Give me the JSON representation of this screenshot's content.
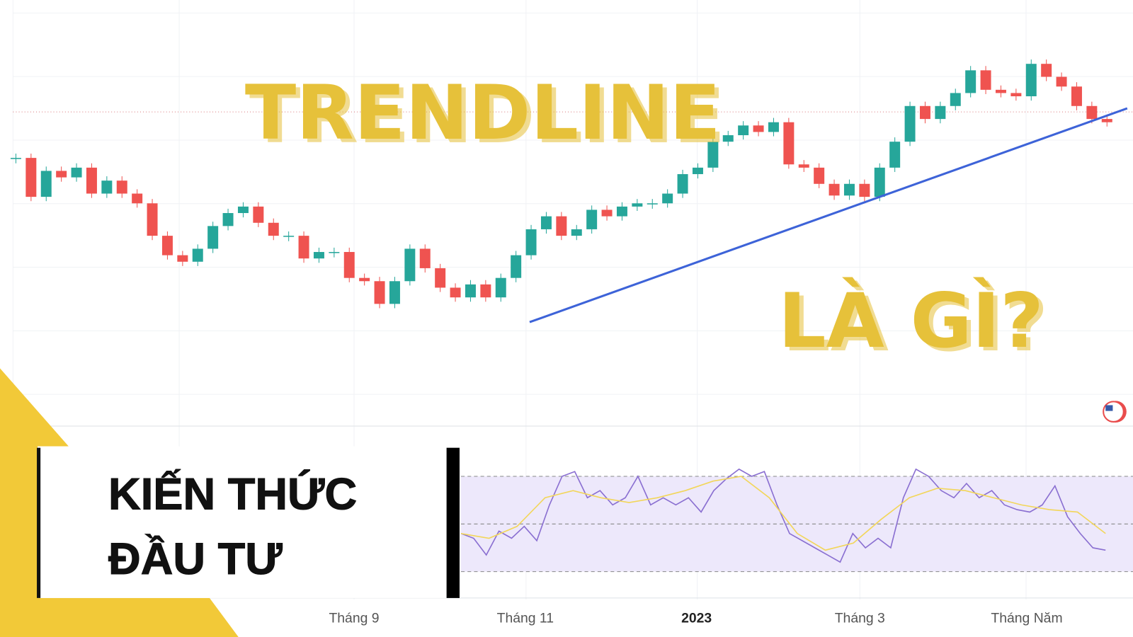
{
  "chart_data": [
    {
      "type": "candlestick",
      "up_color": "#26a69a",
      "down_color": "#ef5350",
      "ylim": [
        0,
        590
      ],
      "values": [
        380,
        320,
        360,
        350,
        365,
        325,
        345,
        325,
        310,
        260,
        230,
        220,
        240,
        275,
        295,
        305,
        280,
        260,
        260,
        225,
        235,
        235,
        195,
        190,
        155,
        190,
        240,
        210,
        180,
        165,
        185,
        165,
        195,
        230,
        270,
        290,
        260,
        270,
        300,
        290,
        305,
        310,
        310,
        325,
        355,
        365,
        405,
        415,
        430,
        420,
        435,
        370,
        365,
        340,
        322,
        340,
        320,
        365,
        405,
        460,
        440,
        460,
        480,
        515,
        485,
        480,
        475,
        525,
        505,
        490,
        460,
        440,
        435
      ],
      "x_labels": [
        "Tháng 9",
        "Tháng 11",
        "2023",
        "Tháng 3",
        "Tháng Năm"
      ]
    },
    {
      "type": "line",
      "ylim": [
        15,
        85
      ],
      "levels": [
        70,
        50,
        30
      ],
      "series": [
        {
          "color": "#8a6fd1",
          "values": [
            46,
            44,
            37,
            47,
            44,
            49,
            43,
            58,
            70,
            72,
            61,
            64,
            58,
            61,
            70,
            58,
            61,
            58,
            61,
            55,
            64,
            69,
            73,
            70,
            72,
            58,
            46,
            43,
            40,
            37,
            34,
            46,
            40,
            44,
            40,
            61,
            73,
            70,
            64,
            61,
            67,
            61,
            64,
            58,
            56,
            55,
            58,
            66,
            53,
            46,
            40,
            39
          ]
        },
        {
          "color": "#f2d65a",
          "values": [
            46,
            44,
            49,
            61,
            64,
            61,
            59,
            61,
            64,
            68,
            70,
            61,
            46,
            39,
            42,
            52,
            61,
            65,
            64,
            61,
            58,
            56,
            55,
            46
          ]
        }
      ]
    }
  ],
  "overlay": {
    "headline": "TRENDLINE",
    "subline": "LÀ GÌ?",
    "banner": [
      "KIẾN THỨC",
      "ĐẦU TƯ"
    ]
  }
}
